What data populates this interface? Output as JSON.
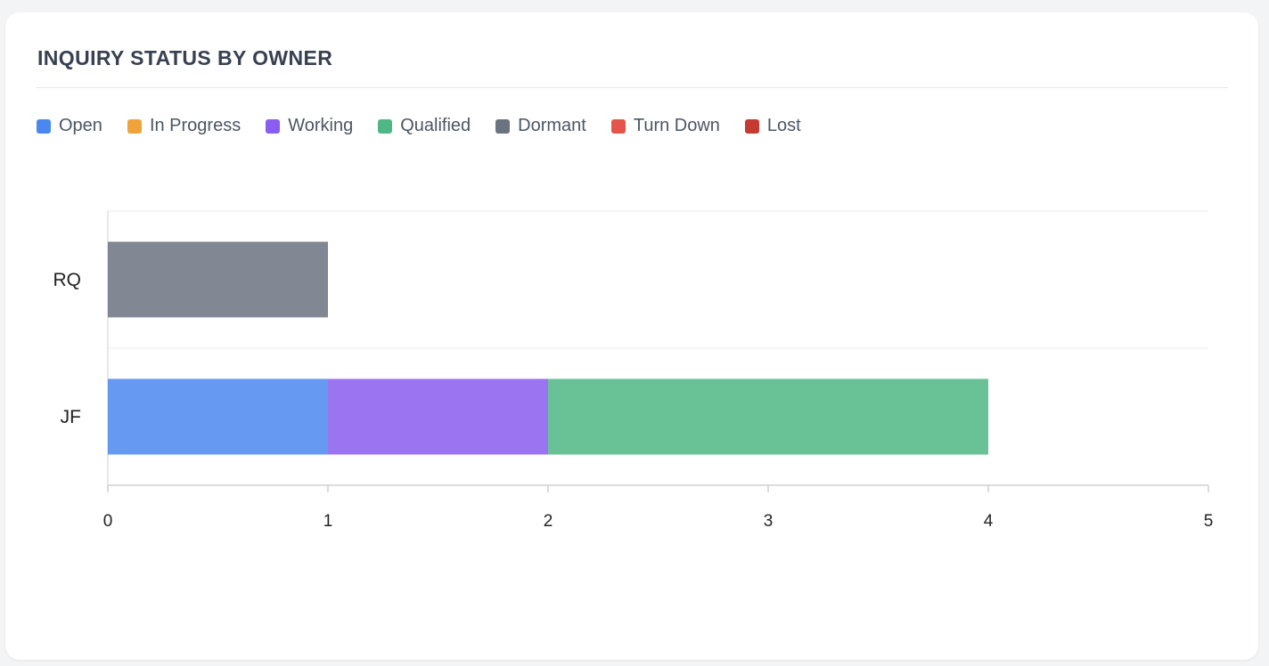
{
  "panel": {
    "title": "INQUIRY STATUS BY OWNER"
  },
  "chart_data": {
    "type": "bar",
    "orientation": "horizontal",
    "stacked": true,
    "categories": [
      "RQ",
      "JF"
    ],
    "series": [
      {
        "name": "Open",
        "color": "#4b87f0",
        "values": [
          0,
          1
        ]
      },
      {
        "name": "In Progress",
        "color": "#f0a33a",
        "values": [
          0,
          0
        ]
      },
      {
        "name": "Working",
        "color": "#8a5cf0",
        "values": [
          0,
          1
        ]
      },
      {
        "name": "Qualified",
        "color": "#4fb784",
        "values": [
          0,
          2
        ]
      },
      {
        "name": "Dormant",
        "color": "#6b7280",
        "values": [
          1,
          0
        ]
      },
      {
        "name": "Turn Down",
        "color": "#e5534b",
        "values": [
          0,
          0
        ]
      },
      {
        "name": "Lost",
        "color": "#c73a32",
        "values": [
          0,
          0
        ]
      }
    ],
    "xlim": [
      0,
      5
    ],
    "xticks": [
      "0",
      "1",
      "2",
      "3",
      "4",
      "5"
    ],
    "grid": true,
    "legend": "top-left"
  }
}
